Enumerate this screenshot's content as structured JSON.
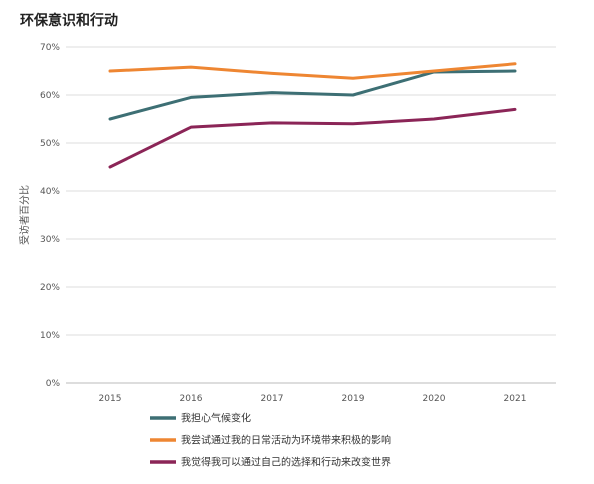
{
  "chart_data": {
    "type": "line",
    "title": "环保意识和行动",
    "ylabel": "受访者百分比",
    "xlabel": "",
    "x": [
      "2015",
      "2016",
      "2017",
      "2019",
      "2020",
      "2021"
    ],
    "ylim": [
      0,
      70
    ],
    "yticks": [
      "0%",
      "10%",
      "20%",
      "30%",
      "40%",
      "50%",
      "60%",
      "70%"
    ],
    "grid": true,
    "legend_position": "bottom",
    "series": [
      {
        "name": "我担心气候变化",
        "color": "#3d6f74",
        "values": [
          55,
          59.5,
          60.5,
          60,
          64.8,
          65
        ]
      },
      {
        "name": "我尝试通过我的日常活动为环境带来积极的影响",
        "color": "#ee8632",
        "values": [
          65,
          65.8,
          64.5,
          63.5,
          65,
          66.5
        ]
      },
      {
        "name": "我觉得我可以通过自己的选择和行动来改变世界",
        "color": "#8b2557",
        "values": [
          45,
          53.3,
          54.2,
          54,
          55,
          57
        ]
      }
    ]
  }
}
